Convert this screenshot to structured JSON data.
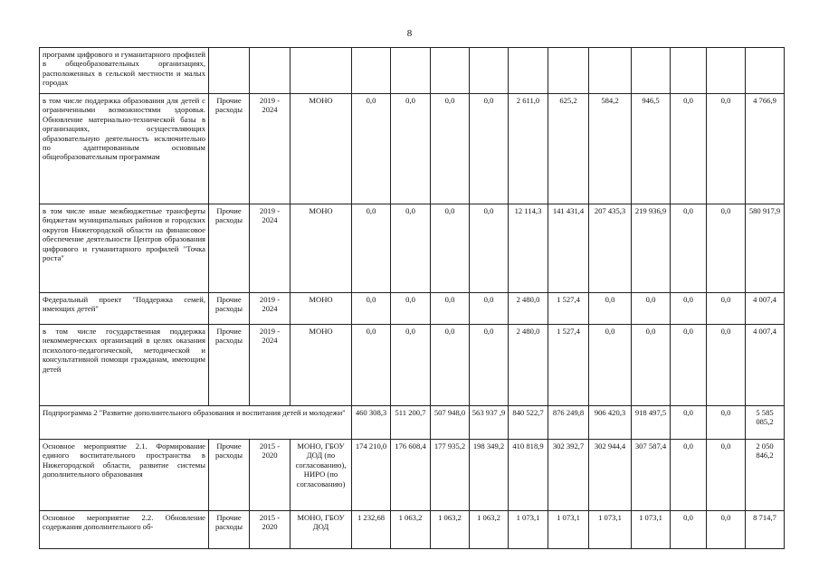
{
  "page_number": "8",
  "rows": [
    {
      "description": "программ цифрового и гуманитарного профилей в общеобразовательных организациях, расположенных в сельской местности и малых городах",
      "type": "",
      "years": "",
      "executor": "",
      "values": [
        "",
        "",
        "",
        "",
        "",
        "",
        "",
        "",
        "",
        "",
        ""
      ]
    },
    {
      "description": "в том числе поддержка образования для детей с ограниченными возможностями здоровья. Обновление материально-технической базы в организациях, осуществляющих образовательную деятельность исключительно по адаптированным основным общеобразовательным программам",
      "type": "Прочие расходы",
      "years": "2019 - 2024",
      "executor": "МОНО",
      "values": [
        "0,0",
        "0,0",
        "0,0",
        "0,0",
        "2 611,0",
        "625,2",
        "584,2",
        "946,5",
        "0,0",
        "0,0",
        "4 766,9"
      ]
    },
    {
      "description": "в том числе иные межбюджетные трансферты бюджетам муниципальных районов и городских округов Нижегородской области на финансовое обеспечение деятельности Центров образования цифрового и гуманитарного профилей \"Точка роста\"",
      "type": "Прочие расходы",
      "years": "2019 - 2024",
      "executor": "МОНО",
      "values": [
        "0,0",
        "0,0",
        "0,0",
        "0,0",
        "12 114,3",
        "141 431,4",
        "207 435,3",
        "219 936,9",
        "0,0",
        "0,0",
        "580 917,9"
      ]
    },
    {
      "description": "Федеральный проект \"Поддержка семей, имеющих детей\"",
      "type": "Прочие расходы",
      "years": "2019 - 2024",
      "executor": "МОНО",
      "values": [
        "0,0",
        "0,0",
        "0,0",
        "0,0",
        "2 480,0",
        "1 527,4",
        "0,0",
        "0,0",
        "0,0",
        "0,0",
        "4 007,4"
      ]
    },
    {
      "description": "в том числе государственная поддержка некоммерческих организаций в целях оказания психолого-педагогической, методической и консультативной помощи гражданам, имеющим детей",
      "type": "Прочие расходы",
      "years": "2019 - 2024",
      "executor": "МОНО",
      "values": [
        "0,0",
        "0,0",
        "0,0",
        "0,0",
        "2 480,0",
        "1 527,4",
        "0,0",
        "0,0",
        "0,0",
        "0,0",
        "4 007,4"
      ]
    },
    {
      "description": "Подпрограмма 2 \"Развитие дополнительного образования и воспитания детей и молодежи\"",
      "span": true,
      "values": [
        "460 308,3",
        "511 200,7",
        "507 948,0",
        "563 937 ,9",
        "840 522,7",
        "876 249,8",
        "906 420,3",
        "918 497,5",
        "0,0",
        "0,0",
        "5 585 085,2"
      ]
    },
    {
      "description": "Основное мероприятие 2.1. Формирование единого воспитательного пространства в Нижегородской области, развитие системы дополнительного образования",
      "type": "Прочие расходы",
      "years": "2015 - 2020",
      "executor": "МОНО, ГБОУ ДОД (по согласованию), НИРО (по согласованию)",
      "values": [
        "174 210,0",
        "176 608,4",
        "177 935,2",
        "198 349,2",
        "410 818,9",
        "302 392,7",
        "302 944,4",
        "307 587,4",
        "0,0",
        "0,0",
        "2 050 846,2"
      ]
    },
    {
      "description": "Основное мероприятие 2.2. Обновление содержания дополнительного об-",
      "type": "Прочие расходы",
      "years": "2015 - 2020",
      "executor": "МОНО, ГБОУ ДОД",
      "values": [
        "1 232,68",
        "1 063,2",
        "1 063,2",
        "1 063,2",
        "1 073,1",
        "1 073,1",
        "1 073,1",
        "1 073,1",
        "0,0",
        "0,0",
        "8 714,7"
      ]
    }
  ]
}
